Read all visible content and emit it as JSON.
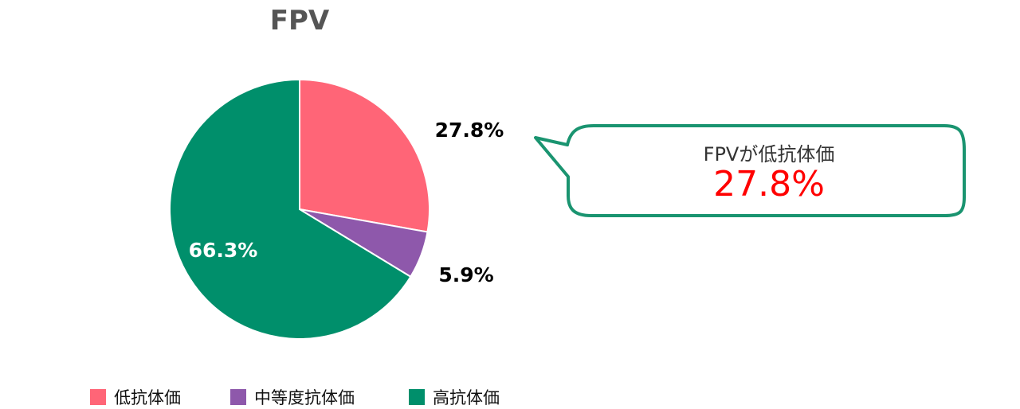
{
  "chart_data": {
    "type": "pie",
    "title": "FPV",
    "categories": [
      "低抗体価",
      "中等度抗体価",
      "高抗体価"
    ],
    "values": [
      27.8,
      5.9,
      66.3
    ],
    "labels": [
      "27.8%",
      "5.9%",
      "66.3%"
    ],
    "colors": [
      "#FF6577",
      "#8E58AB",
      "#008F6B"
    ],
    "start_angle": "12 o'clock",
    "direction": "clockwise",
    "legend_position": "bottom"
  },
  "callout": {
    "title": "FPVが低抗体価",
    "value": "27.8%",
    "border_color": "#1A9470",
    "value_color": "#FF0000"
  }
}
